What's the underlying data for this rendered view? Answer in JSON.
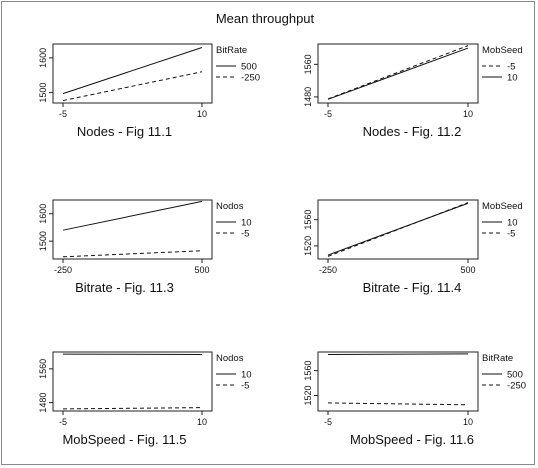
{
  "title": "Mean throughput",
  "chart_data": [
    {
      "type": "line",
      "xlabel": "Nodes - Fig 11.1",
      "ylabel": "",
      "x": [
        -5,
        10
      ],
      "xticks": [
        -5,
        10
      ],
      "yticks": [
        1500,
        1600
      ],
      "ylim": [
        1470,
        1640
      ],
      "legend_title": "BitRate",
      "legend_position": "right",
      "series": [
        {
          "name": "500",
          "style": "solid",
          "values": [
            1497,
            1630
          ]
        },
        {
          "name": "-250",
          "style": "dashed",
          "values": [
            1477,
            1560
          ]
        }
      ]
    },
    {
      "type": "line",
      "xlabel": "Nodes - Fig. 11.2",
      "ylabel": "",
      "x": [
        -5,
        10
      ],
      "xticks": [
        -5,
        10
      ],
      "yticks": [
        1480,
        1560
      ],
      "ylim": [
        1465,
        1610
      ],
      "legend_title": "MobSeed",
      "legend_position": "right",
      "series": [
        {
          "name": "-5",
          "style": "dashed",
          "values": [
            1475,
            1606
          ]
        },
        {
          "name": "10",
          "style": "solid",
          "values": [
            1474,
            1600
          ]
        }
      ]
    },
    {
      "type": "line",
      "xlabel": "Bitrate - Fig. 11.3",
      "ylabel": "",
      "x": [
        -250,
        500
      ],
      "xticks": [
        -250,
        500
      ],
      "yticks": [
        1500,
        1600
      ],
      "ylim": [
        1435,
        1650
      ],
      "legend_title": "Nodos",
      "legend_position": "right",
      "series": [
        {
          "name": "10",
          "style": "solid",
          "values": [
            1540,
            1645
          ]
        },
        {
          "name": "-5",
          "style": "dashed",
          "values": [
            1443,
            1465
          ]
        }
      ]
    },
    {
      "type": "line",
      "xlabel": "Bitrate - Fig. 11.4",
      "ylabel": "",
      "x": [
        -250,
        500
      ],
      "xticks": [
        -250,
        500
      ],
      "yticks": [
        1520,
        1560
      ],
      "ylim": [
        1500,
        1590
      ],
      "legend_title": "MobSeed",
      "legend_position": "right",
      "series": [
        {
          "name": "10",
          "style": "solid",
          "values": [
            1506,
            1585
          ]
        },
        {
          "name": "-5",
          "style": "dashed",
          "values": [
            1504,
            1586
          ]
        }
      ]
    },
    {
      "type": "line",
      "xlabel": "MobSpeed - Fig. 11.5",
      "ylabel": "",
      "x": [
        -5,
        10
      ],
      "xticks": [
        -5,
        10
      ],
      "yticks": [
        1480,
        1560
      ],
      "ylim": [
        1460,
        1600
      ],
      "legend_title": "Nodos",
      "legend_position": "right",
      "series": [
        {
          "name": "10",
          "style": "solid",
          "values": [
            1595,
            1594
          ]
        },
        {
          "name": "-5",
          "style": "dashed",
          "values": [
            1465,
            1468
          ]
        }
      ]
    },
    {
      "type": "line",
      "xlabel": "MobSpeed - Fig. 11.6",
      "ylabel": "",
      "x": [
        -5,
        10
      ],
      "xticks": [
        -5,
        10
      ],
      "yticks": [
        1520,
        1560
      ],
      "ylim": [
        1495,
        1590
      ],
      "legend_title": "BitRate",
      "legend_position": "right",
      "series": [
        {
          "name": "500",
          "style": "solid",
          "values": [
            1586,
            1587
          ]
        },
        {
          "name": "-250",
          "style": "dashed",
          "values": [
            1508,
            1505
          ]
        }
      ]
    }
  ]
}
